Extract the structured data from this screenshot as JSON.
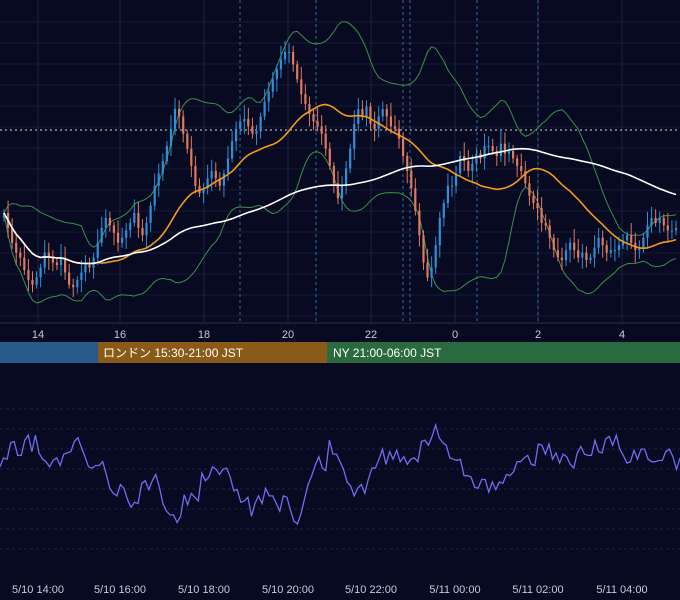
{
  "chart_data": [
    {
      "type": "candlestick",
      "overlays": [
        "bollinger-bands",
        "moving-average-orange",
        "moving-average-white",
        "horizontal-dotted-reference"
      ],
      "x_tick_labels": [
        "14",
        "16",
        "18",
        "20",
        "22",
        "0",
        "2",
        "4"
      ],
      "grid": true,
      "colors": {
        "up": "#2f8fd8",
        "down": "#e07a5f",
        "bollinger": "#3f8f4c",
        "ma_short": "#f39a1e",
        "ma_long": "#ffffff",
        "background": "#070a20"
      },
      "close_series": [
        128,
        116,
        104,
        96,
        92,
        82,
        74,
        70,
        76,
        84,
        96,
        92,
        88,
        86,
        92,
        80,
        70,
        68,
        74,
        80,
        86,
        84,
        92,
        104,
        116,
        124,
        118,
        112,
        104,
        108,
        114,
        120,
        128,
        116,
        110,
        120,
        134,
        150,
        160,
        170,
        182,
        196,
        212,
        206,
        192,
        180,
        166,
        150,
        144,
        148,
        156,
        162,
        156,
        150,
        160,
        172,
        186,
        196,
        202,
        204,
        198,
        192,
        194,
        206,
        218,
        226,
        236,
        244,
        252,
        258,
        258,
        248,
        236,
        224,
        216,
        208,
        202,
        198,
        192,
        180,
        166,
        152,
        140,
        150,
        164,
        180,
        200,
        212,
        206,
        214,
        200,
        196,
        206,
        212,
        206,
        198,
        196,
        188,
        174,
        162,
        148,
        130,
        110,
        88,
        76,
        84,
        102,
        124,
        136,
        150,
        150,
        160,
        174,
        170,
        162,
        168,
        176,
        172,
        182,
        182,
        178,
        174,
        184,
        176,
        178,
        172,
        166,
        162,
        152,
        142,
        136,
        132,
        120,
        118,
        108,
        98,
        92,
        90,
        98,
        104,
        98,
        92,
        96,
        90,
        92,
        100,
        108,
        102,
        96,
        98,
        98,
        102,
        106,
        110,
        104,
        98,
        100,
        108,
        118,
        124,
        120,
        124,
        118,
        114,
        114,
        116
      ]
    },
    {
      "type": "line",
      "series_color": "#6e6ef0",
      "grid": true,
      "x_tick_labels": [
        "5/10 14:00",
        "5/10 16:00",
        "5/10 18:00",
        "5/10 20:00",
        "5/10 22:00",
        "5/11 00:00",
        "5/11 02:00",
        "5/11 04:00"
      ],
      "values": [
        52,
        59,
        58,
        71,
        72,
        61,
        61,
        73,
        77,
        64,
        77,
        63,
        58,
        56,
        52,
        57,
        59,
        53,
        62,
        63,
        64,
        72,
        75,
        67,
        60,
        52,
        51,
        53,
        53,
        56,
        46,
        35,
        31,
        29,
        38,
        35,
        26,
        20,
        24,
        23,
        39,
        41,
        34,
        41,
        46,
        36,
        23,
        17,
        14,
        14,
        8,
        13,
        30,
        22,
        31,
        28,
        25,
        47,
        41,
        44,
        52,
        50,
        46,
        50,
        51,
        44,
        33,
        34,
        24,
        25,
        28,
        13,
        23,
        29,
        23,
        35,
        29,
        29,
        23,
        17,
        29,
        28,
        18,
        9,
        7,
        15,
        27,
        38,
        45,
        53,
        60,
        51,
        49,
        73,
        62,
        62,
        56,
        50,
        40,
        37,
        29,
        35,
        38,
        31,
        42,
        51,
        51,
        58,
        66,
        54,
        64,
        58,
        65,
        56,
        60,
        54,
        58,
        59,
        56,
        72,
        73,
        69,
        76,
        85,
        75,
        71,
        69,
        59,
        58,
        57,
        58,
        45,
        45,
        44,
        36,
        35,
        42,
        42,
        32,
        40,
        34,
        40,
        39,
        46,
        45,
        48,
        56,
        56,
        59,
        61,
        54,
        53,
        70,
        69,
        62,
        70,
        58,
        63,
        55,
        62,
        60,
        54,
        51,
        63,
        68,
        62,
        61,
        61,
        73,
        64,
        63,
        74,
        76,
        69,
        77,
        66,
        61,
        55,
        56,
        65,
        58,
        66,
        66,
        58,
        56,
        56,
        57,
        57,
        64,
        66,
        60,
        50,
        59
      ]
    }
  ],
  "session_bar": {
    "london_label": "ロンドン 15:30-21:00 JST",
    "ny_label": "NY 21:00-06:00 JST",
    "colors": {
      "tokyo": "#2a5a8a",
      "london": "#8a5a18",
      "ny": "#2a6a3e"
    }
  }
}
